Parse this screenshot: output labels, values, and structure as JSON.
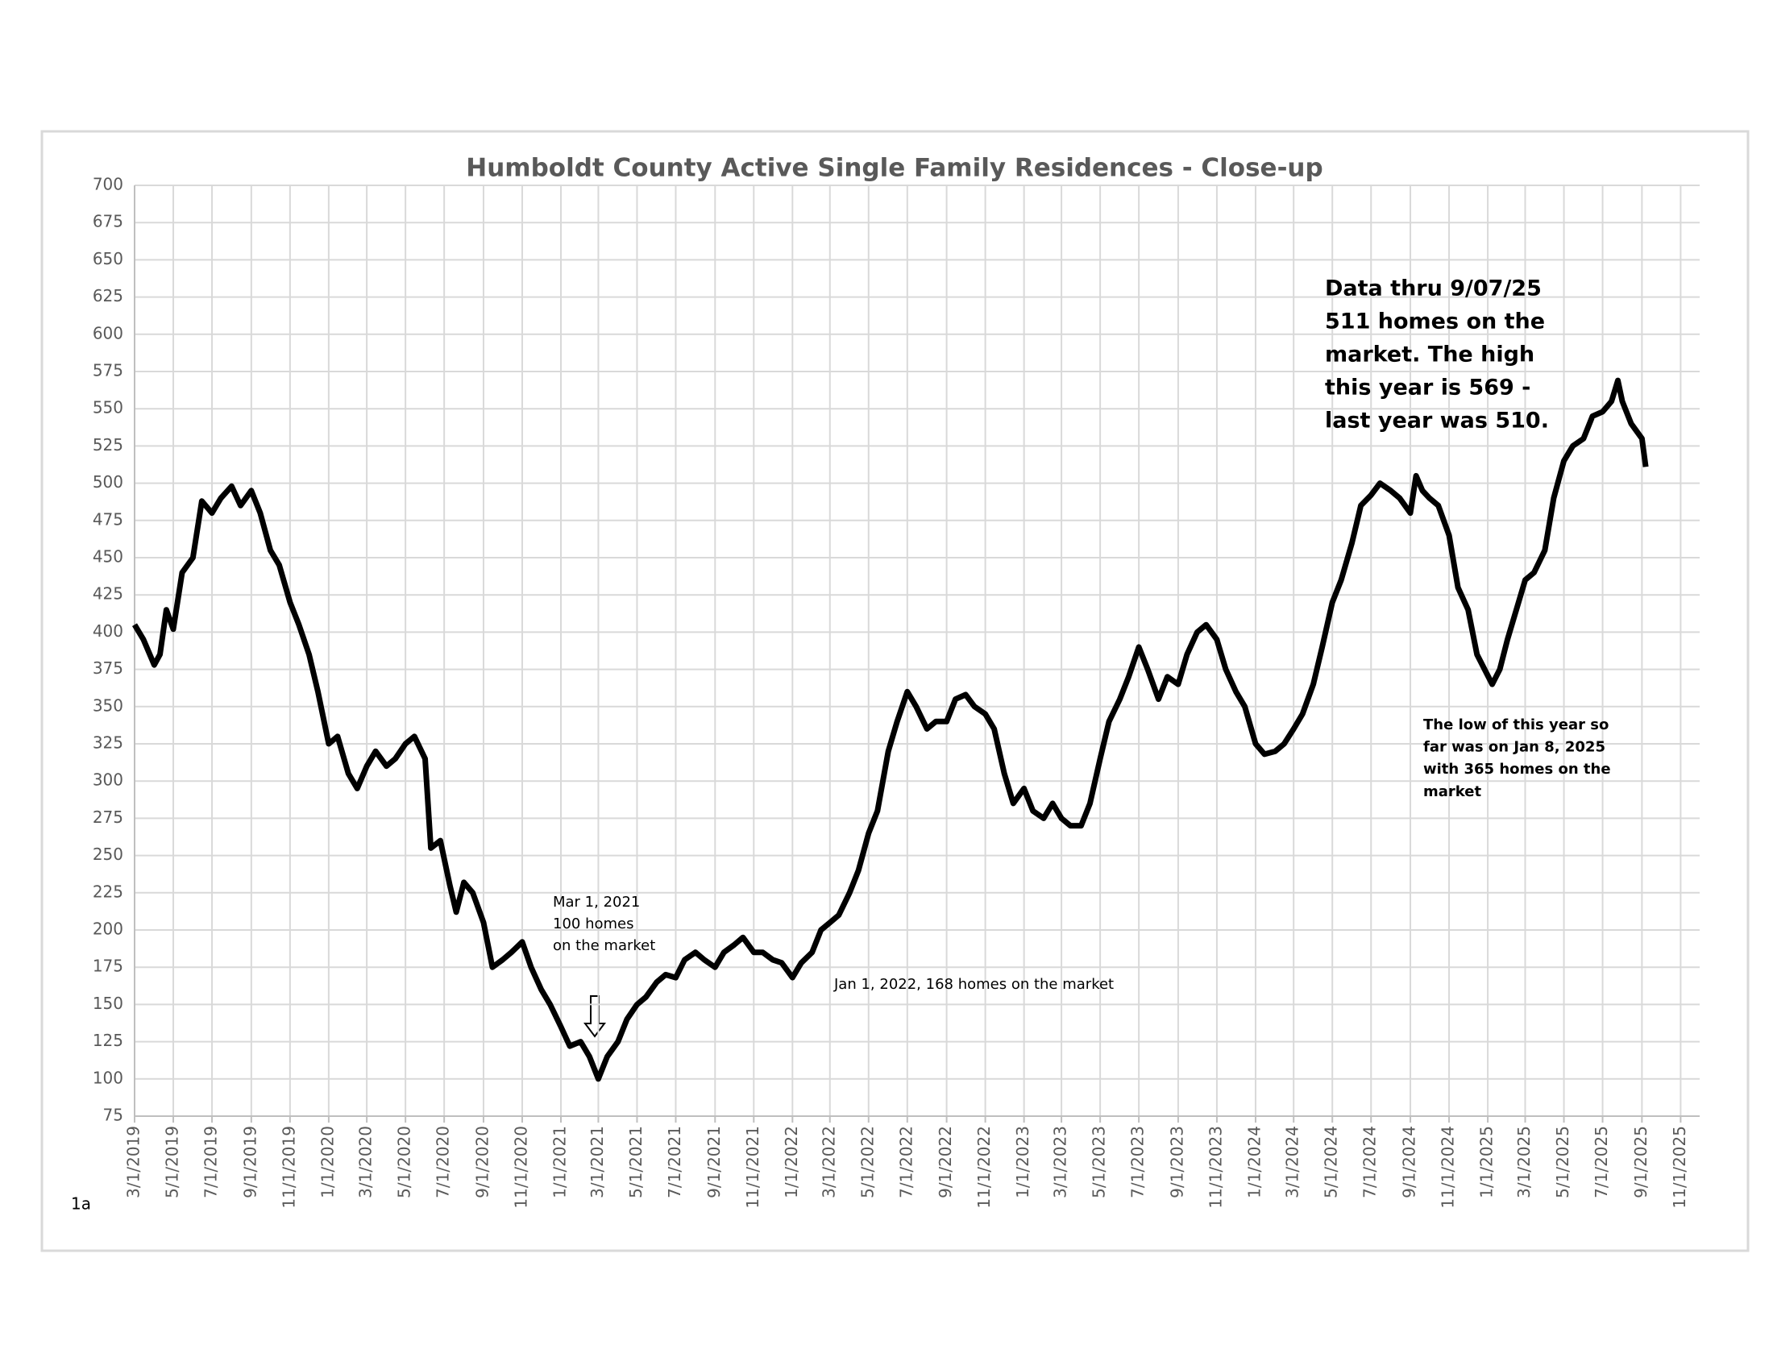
{
  "chart_data": {
    "type": "line",
    "title": "Humboldt County Active Single Family Residences - Close-up",
    "x": [
      "2019-03-01",
      "2019-03-15",
      "2019-04-01",
      "2019-04-10",
      "2019-04-20",
      "2019-05-01",
      "2019-05-15",
      "2019-06-01",
      "2019-06-15",
      "2019-07-01",
      "2019-07-15",
      "2019-08-01",
      "2019-08-15",
      "2019-09-01",
      "2019-09-15",
      "2019-10-01",
      "2019-10-15",
      "2019-11-01",
      "2019-11-15",
      "2019-12-01",
      "2019-12-15",
      "2020-01-01",
      "2020-01-15",
      "2020-02-01",
      "2020-02-15",
      "2020-03-01",
      "2020-03-15",
      "2020-04-01",
      "2020-04-15",
      "2020-05-01",
      "2020-05-15",
      "2020-06-01",
      "2020-06-10",
      "2020-06-25",
      "2020-07-10",
      "2020-07-20",
      "2020-08-01",
      "2020-08-15",
      "2020-09-01",
      "2020-09-15",
      "2020-10-01",
      "2020-10-15",
      "2020-11-01",
      "2020-11-15",
      "2020-12-01",
      "2020-12-15",
      "2021-01-01",
      "2021-01-15",
      "2021-02-01",
      "2021-02-15",
      "2021-03-01",
      "2021-03-15",
      "2021-04-01",
      "2021-04-15",
      "2021-05-01",
      "2021-05-15",
      "2021-06-01",
      "2021-06-15",
      "2021-07-01",
      "2021-07-15",
      "2021-08-01",
      "2021-08-15",
      "2021-09-01",
      "2021-09-15",
      "2021-10-01",
      "2021-10-15",
      "2021-11-01",
      "2021-11-15",
      "2021-12-01",
      "2021-12-15",
      "2022-01-01",
      "2022-01-15",
      "2022-02-01",
      "2022-02-15",
      "2022-03-01",
      "2022-03-15",
      "2022-04-01",
      "2022-04-15",
      "2022-05-01",
      "2022-05-15",
      "2022-06-01",
      "2022-06-15",
      "2022-07-01",
      "2022-07-15",
      "2022-08-01",
      "2022-08-15",
      "2022-09-01",
      "2022-09-15",
      "2022-10-01",
      "2022-10-15",
      "2022-11-01",
      "2022-11-15",
      "2022-12-01",
      "2022-12-15",
      "2023-01-01",
      "2023-01-15",
      "2023-02-01",
      "2023-02-15",
      "2023-03-01",
      "2023-03-15",
      "2023-04-01",
      "2023-04-15",
      "2023-05-01",
      "2023-05-15",
      "2023-06-01",
      "2023-06-15",
      "2023-07-01",
      "2023-07-15",
      "2023-08-01",
      "2023-08-15",
      "2023-09-01",
      "2023-09-15",
      "2023-10-01",
      "2023-10-15",
      "2023-11-01",
      "2023-11-15",
      "2023-12-01",
      "2023-12-15",
      "2024-01-01",
      "2024-01-15",
      "2024-02-01",
      "2024-02-15",
      "2024-03-01",
      "2024-03-15",
      "2024-04-01",
      "2024-04-15",
      "2024-05-01",
      "2024-05-15",
      "2024-06-01",
      "2024-06-15",
      "2024-07-01",
      "2024-07-15",
      "2024-08-01",
      "2024-08-15",
      "2024-09-01",
      "2024-09-10",
      "2024-09-20",
      "2024-10-01",
      "2024-10-15",
      "2024-11-01",
      "2024-11-15",
      "2024-12-01",
      "2024-12-15",
      "2025-01-08",
      "2025-01-20",
      "2025-02-01",
      "2025-02-15",
      "2025-03-01",
      "2025-03-15",
      "2025-04-01",
      "2025-04-15",
      "2025-05-01",
      "2025-05-15",
      "2025-06-01",
      "2025-06-15",
      "2025-07-01",
      "2025-07-15",
      "2025-07-25",
      "2025-08-01",
      "2025-08-15",
      "2025-09-01",
      "2025-09-07"
    ],
    "series": [
      {
        "color": "#000000",
        "values": [
          405,
          395,
          378,
          385,
          415,
          402,
          440,
          450,
          488,
          480,
          490,
          498,
          485,
          495,
          480,
          455,
          445,
          420,
          405,
          385,
          360,
          325,
          330,
          305,
          295,
          310,
          320,
          310,
          315,
          325,
          330,
          315,
          255,
          260,
          230,
          212,
          232,
          225,
          205,
          175,
          180,
          185,
          192,
          175,
          160,
          150,
          135,
          122,
          125,
          115,
          100,
          115,
          125,
          140,
          150,
          155,
          165,
          170,
          168,
          180,
          185,
          180,
          175,
          185,
          190,
          195,
          185,
          185,
          180,
          178,
          168,
          178,
          185,
          200,
          205,
          210,
          225,
          240,
          265,
          280,
          320,
          340,
          360,
          350,
          335,
          340,
          340,
          355,
          358,
          350,
          345,
          335,
          305,
          285,
          295,
          280,
          275,
          285,
          275,
          270,
          270,
          285,
          315,
          340,
          355,
          370,
          390,
          375,
          355,
          370,
          365,
          385,
          400,
          405,
          395,
          375,
          360,
          350,
          325,
          318,
          320,
          325,
          335,
          345,
          365,
          390,
          420,
          435,
          460,
          485,
          492,
          500,
          495,
          490,
          480,
          505,
          495,
          490,
          485,
          465,
          430,
          415,
          385,
          365,
          375,
          395,
          415,
          435,
          440,
          455,
          490,
          515,
          525,
          530,
          545,
          548,
          555,
          569,
          555,
          540,
          530,
          511
        ]
      }
    ],
    "xlim": [
      "2019-03-01",
      "2025-12-01"
    ],
    "xticks": [
      {
        "value": "2019-03-01",
        "label": "3/1/2019"
      },
      {
        "value": "2019-05-01",
        "label": "5/1/2019"
      },
      {
        "value": "2019-07-01",
        "label": "7/1/2019"
      },
      {
        "value": "2019-09-01",
        "label": "9/1/2019"
      },
      {
        "value": "2019-11-01",
        "label": "11/1/2019"
      },
      {
        "value": "2020-01-01",
        "label": "1/1/2020"
      },
      {
        "value": "2020-03-01",
        "label": "3/1/2020"
      },
      {
        "value": "2020-05-01",
        "label": "5/1/2020"
      },
      {
        "value": "2020-07-01",
        "label": "7/1/2020"
      },
      {
        "value": "2020-09-01",
        "label": "9/1/2020"
      },
      {
        "value": "2020-11-01",
        "label": "11/1/2020"
      },
      {
        "value": "2021-01-01",
        "label": "1/1/2021"
      },
      {
        "value": "2021-03-01",
        "label": "3/1/2021"
      },
      {
        "value": "2021-05-01",
        "label": "5/1/2021"
      },
      {
        "value": "2021-07-01",
        "label": "7/1/2021"
      },
      {
        "value": "2021-09-01",
        "label": "9/1/2021"
      },
      {
        "value": "2021-11-01",
        "label": "11/1/2021"
      },
      {
        "value": "2022-01-01",
        "label": "1/1/2022"
      },
      {
        "value": "2022-03-01",
        "label": "3/1/2022"
      },
      {
        "value": "2022-05-01",
        "label": "5/1/2022"
      },
      {
        "value": "2022-07-01",
        "label": "7/1/2022"
      },
      {
        "value": "2022-09-01",
        "label": "9/1/2022"
      },
      {
        "value": "2022-11-01",
        "label": "11/1/2022"
      },
      {
        "value": "2023-01-01",
        "label": "1/1/2023"
      },
      {
        "value": "2023-03-01",
        "label": "3/1/2023"
      },
      {
        "value": "2023-05-01",
        "label": "5/1/2023"
      },
      {
        "value": "2023-07-01",
        "label": "7/1/2023"
      },
      {
        "value": "2023-09-01",
        "label": "9/1/2023"
      },
      {
        "value": "2023-11-01",
        "label": "11/1/2023"
      },
      {
        "value": "2024-01-01",
        "label": "1/1/2024"
      },
      {
        "value": "2024-03-01",
        "label": "3/1/2024"
      },
      {
        "value": "2024-05-01",
        "label": "5/1/2024"
      },
      {
        "value": "2024-07-01",
        "label": "7/1/2024"
      },
      {
        "value": "2024-09-01",
        "label": "9/1/2024"
      },
      {
        "value": "2024-11-01",
        "label": "11/1/2024"
      },
      {
        "value": "2025-01-01",
        "label": "1/1/2025"
      },
      {
        "value": "2025-03-01",
        "label": "3/1/2025"
      },
      {
        "value": "2025-05-01",
        "label": "5/1/2025"
      },
      {
        "value": "2025-07-01",
        "label": "7/1/2025"
      },
      {
        "value": "2025-09-01",
        "label": "9/1/2025"
      },
      {
        "value": "2025-11-01",
        "label": "11/1/2025"
      }
    ],
    "ylim": [
      75,
      700
    ],
    "yticks": [
      75,
      100,
      125,
      150,
      175,
      200,
      225,
      250,
      275,
      300,
      325,
      350,
      375,
      400,
      425,
      450,
      475,
      500,
      525,
      550,
      575,
      600,
      625,
      650,
      675,
      700
    ],
    "grid": true,
    "annotations": [
      {
        "lines": [
          "Data thru  9/07/25",
          "511 homes on the",
          "market. The high",
          "this year is 569 -",
          "last year was 510."
        ]
      },
      {
        "lines": [
          "The low of this year so",
          "far was on Jan 8, 2025",
          "with 365 homes on the",
          "market"
        ]
      },
      {
        "lines": [
          "Mar 1, 2021",
          "100 homes",
          "on the market"
        ]
      },
      {
        "lines": [
          "Jan 1, 2022, 168 homes on the market"
        ]
      }
    ],
    "footnote": "1a"
  }
}
